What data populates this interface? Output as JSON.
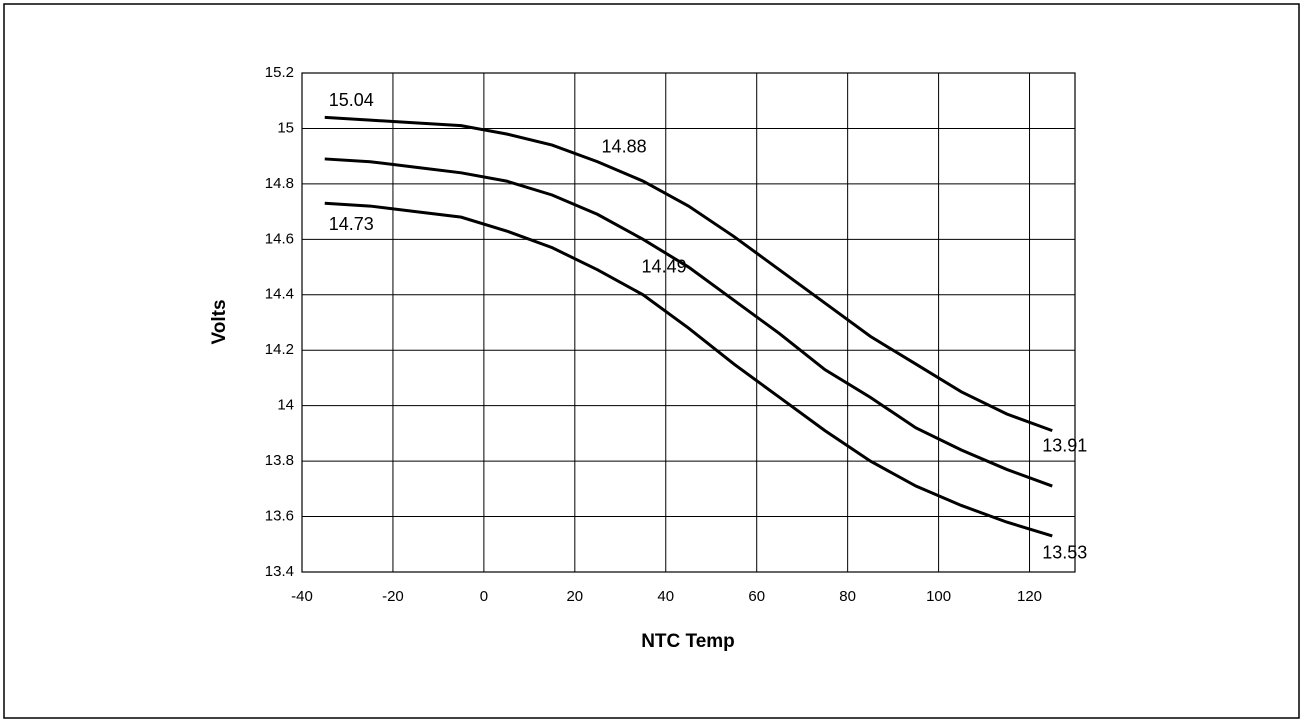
{
  "chart_data": {
    "type": "line",
    "x_label": "NTC Temp",
    "y_label": "Volts",
    "x": [
      -35,
      -25,
      -15,
      -5,
      5,
      15,
      25,
      35,
      45,
      55,
      65,
      75,
      85,
      95,
      105,
      115,
      125
    ],
    "series": [
      {
        "color": "#000000",
        "values": [
          15.04,
          15.03,
          15.02,
          15.01,
          14.98,
          14.94,
          14.88,
          14.81,
          14.72,
          14.61,
          14.49,
          14.37,
          14.25,
          14.15,
          14.05,
          13.97,
          13.91
        ],
        "value_labels": [
          "15.04",
          null,
          null,
          null,
          null,
          null,
          "14.88",
          null,
          null,
          null,
          null,
          null,
          null,
          null,
          null,
          null,
          "13.91"
        ]
      },
      {
        "color": "#000000",
        "values": [
          14.89,
          14.88,
          14.86,
          14.84,
          14.81,
          14.76,
          14.69,
          14.6,
          14.5,
          14.38,
          14.26,
          14.13,
          14.03,
          13.92,
          13.84,
          13.77,
          13.71
        ]
      },
      {
        "color": "#000000",
        "values": [
          14.73,
          14.72,
          14.7,
          14.68,
          14.63,
          14.57,
          14.49,
          14.4,
          14.28,
          14.15,
          14.03,
          13.91,
          13.8,
          13.71,
          13.64,
          13.58,
          13.53
        ],
        "value_labels": [
          "14.73",
          null,
          null,
          null,
          null,
          null,
          "14.49",
          null,
          null,
          null,
          null,
          null,
          null,
          null,
          null,
          null,
          "13.53"
        ]
      }
    ],
    "xlim": [
      -40,
      130
    ],
    "xticks": [
      -40,
      -20,
      0,
      20,
      40,
      60,
      80,
      100,
      120
    ],
    "ylim": [
      13.4,
      15.2
    ],
    "yticks": [
      13.4,
      13.6,
      13.8,
      14,
      14.2,
      14.4,
      14.6,
      14.8,
      15,
      15.2
    ],
    "grid": true
  }
}
